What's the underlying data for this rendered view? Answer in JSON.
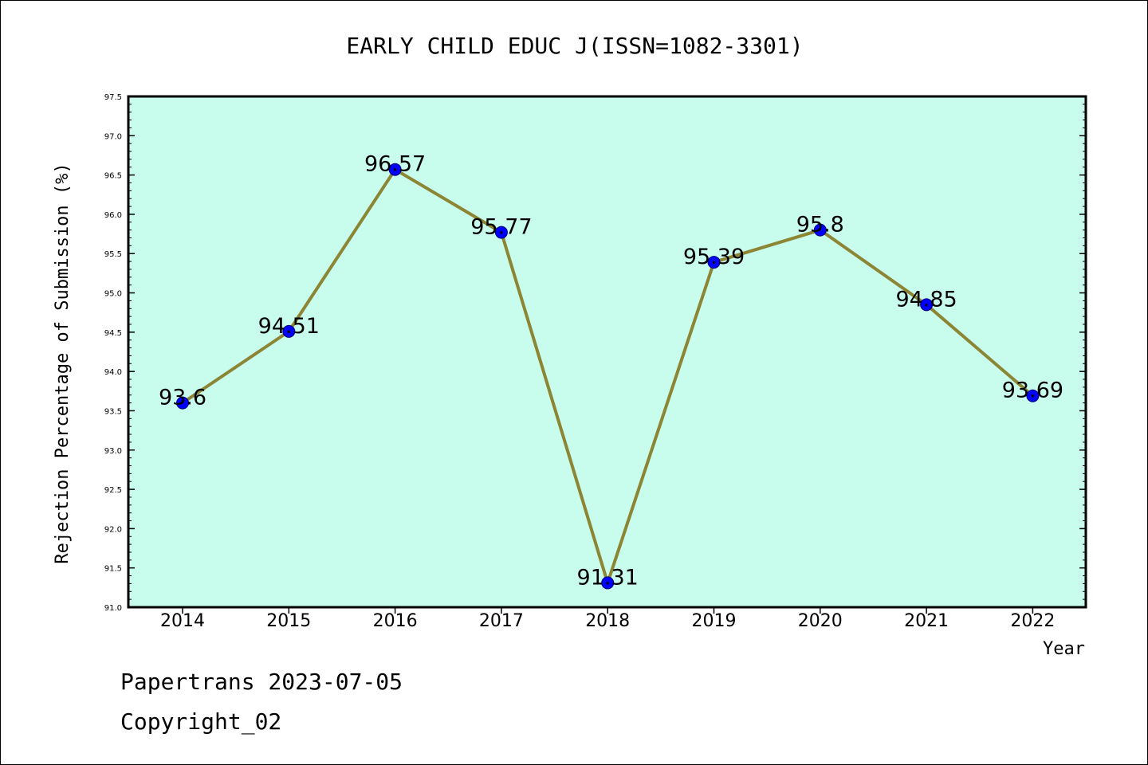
{
  "chart_data": {
    "type": "line",
    "title": "EARLY CHILD EDUC J(ISSN=1082-3301)",
    "xlabel": "Year",
    "ylabel": "Rejection Percentage of Submission (%)",
    "categories": [
      "2014",
      "2015",
      "2016",
      "2017",
      "2018",
      "2019",
      "2020",
      "2021",
      "2022"
    ],
    "values": [
      93.6,
      94.51,
      96.57,
      95.77,
      91.31,
      95.39,
      95.8,
      94.85,
      93.69
    ],
    "data_labels": [
      "93.6",
      "94.51",
      "96.57",
      "95.77",
      "91.31",
      "95.39",
      "95.8",
      "94.85",
      "93.69"
    ],
    "ylim": [
      91.0,
      97.5
    ],
    "yticks": [
      "91.0",
      "91.5",
      "92.0",
      "92.5",
      "93.0",
      "93.5",
      "94.0",
      "94.5",
      "95.0",
      "95.5",
      "96.0",
      "96.5",
      "97.0",
      "97.5"
    ],
    "grid": false,
    "colors": {
      "plot_background": "#c8fcec",
      "line": "#8b8534",
      "marker": "#0000ff"
    }
  },
  "footer": {
    "line1": "Papertrans 2023-07-05",
    "line2": "Copyright_02"
  }
}
